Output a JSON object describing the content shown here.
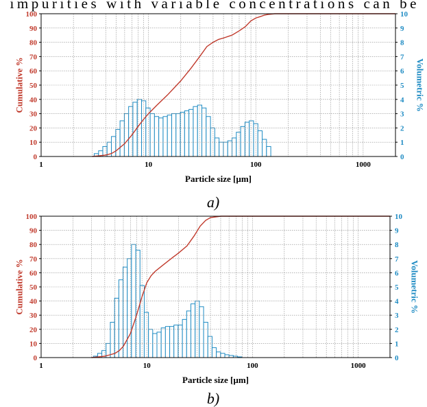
{
  "page": {
    "top_text": "impurities with variable concentrations can be"
  },
  "colors": {
    "cumulative": "#c0392b",
    "volumetric": "#1e8bc3",
    "grid": "#888888",
    "frame": "#000000"
  },
  "chart_data": [
    {
      "type": "bar",
      "panel_label": "a)",
      "xscale": "log",
      "xlim": [
        1,
        2000
      ],
      "xticks": [
        "1",
        "10",
        "100",
        "1000"
      ],
      "xlabel": "Particle size [µm]",
      "ylabel": "Cumulative %",
      "ylim": [
        0,
        100
      ],
      "yticks": [
        "0",
        "10",
        "20",
        "30",
        "40",
        "50",
        "60",
        "70",
        "80",
        "90",
        "100"
      ],
      "y2label": "Volumetric %",
      "y2lim": [
        0,
        10
      ],
      "y2ticks": [
        "0",
        "1",
        "2",
        "3",
        "4",
        "5",
        "6",
        "7",
        "8",
        "9",
        "10"
      ],
      "grid": true,
      "series": [
        {
          "kind": "histogram",
          "axis": "right",
          "x": [
            3.27,
            3.59,
            3.93,
            4.31,
            4.73,
            5.19,
            5.69,
            6.24,
            6.84,
            7.5,
            8.23,
            9.03,
            9.9,
            10.86,
            11.91,
            13.06,
            14.33,
            15.71,
            17.24,
            18.9,
            20.73,
            22.74,
            24.94,
            27.36,
            30.01,
            32.91,
            36.1,
            39.6,
            43.43,
            47.64,
            52.25,
            57.31,
            62.86,
            68.95,
            75.63,
            82.95,
            90.99,
            99.8,
            109.46,
            120.06,
            131.69
          ],
          "values": [
            0.2,
            0.4,
            0.7,
            1.0,
            1.4,
            1.9,
            2.5,
            3.0,
            3.5,
            3.8,
            4.0,
            3.9,
            3.4,
            3.0,
            2.8,
            2.7,
            2.8,
            2.9,
            3.0,
            3.0,
            3.1,
            3.2,
            3.3,
            3.5,
            3.6,
            3.4,
            2.8,
            2.0,
            1.3,
            1.0,
            1.0,
            1.1,
            1.3,
            1.7,
            2.1,
            2.4,
            2.5,
            2.3,
            1.8,
            1.2,
            0.7
          ]
        },
        {
          "kind": "line",
          "axis": "left",
          "x": [
            3.0,
            3.5,
            4.0,
            4.5,
            5.0,
            6.0,
            7.0,
            8.0,
            9.0,
            10.0,
            12.0,
            15.0,
            20.0,
            25.0,
            30.0,
            35.0,
            40.0,
            45.0,
            50.0,
            60.0,
            70.0,
            80.0,
            90.0,
            100.0,
            110.0,
            120.0,
            130.0,
            150.0,
            2000.0
          ],
          "values": [
            0,
            0.5,
            1,
            2,
            4,
            9,
            15,
            21,
            26,
            30,
            36,
            43,
            53,
            62,
            70,
            77,
            80,
            82,
            83,
            85,
            88,
            91,
            95,
            97,
            98,
            99,
            99.5,
            100,
            100
          ]
        }
      ]
    },
    {
      "type": "bar",
      "panel_label": "b)",
      "xscale": "log",
      "xlim": [
        1,
        2000
      ],
      "xticks": [
        "1",
        "10",
        "100",
        "1000"
      ],
      "xlabel": "Particle size [µm]",
      "ylabel": "Cumulative %",
      "ylim": [
        0,
        100
      ],
      "yticks": [
        "0",
        "10",
        "20",
        "30",
        "40",
        "50",
        "60",
        "70",
        "80",
        "90",
        "100"
      ],
      "y2label": "Volumetric %",
      "y2lim": [
        0,
        10
      ],
      "y2ticks": [
        "0",
        "1",
        "2",
        "3",
        "4",
        "5",
        "6",
        "7",
        "8",
        "9",
        "10"
      ],
      "grid": true,
      "series": [
        {
          "kind": "histogram",
          "axis": "right",
          "x": [
            3.27,
            3.59,
            3.93,
            4.31,
            4.73,
            5.19,
            5.69,
            6.24,
            6.84,
            7.5,
            8.23,
            9.03,
            9.9,
            10.86,
            11.91,
            13.06,
            14.33,
            15.71,
            17.24,
            18.9,
            20.73,
            22.74,
            24.94,
            27.36,
            30.01,
            32.91,
            36.1,
            39.6,
            43.43,
            47.64,
            52.25,
            57.31,
            62.86,
            68.95,
            75.63
          ],
          "values": [
            0.1,
            0.3,
            0.5,
            1.0,
            2.5,
            4.2,
            5.5,
            6.4,
            7.0,
            8.0,
            7.6,
            5.1,
            3.2,
            2.0,
            1.7,
            1.8,
            2.1,
            2.2,
            2.2,
            2.3,
            2.3,
            2.7,
            3.3,
            3.8,
            4.0,
            3.6,
            2.5,
            1.5,
            0.7,
            0.4,
            0.3,
            0.2,
            0.15,
            0.1,
            0.05
          ]
        },
        {
          "kind": "line",
          "axis": "left",
          "x": [
            3.0,
            3.5,
            4.0,
            4.5,
            5.0,
            5.5,
            6.0,
            7.0,
            8.0,
            9.0,
            10.0,
            11.0,
            12.0,
            14.0,
            17.0,
            20.0,
            24.0,
            28.0,
            32.0,
            36.0,
            40.0,
            50.0,
            60.0,
            70.0,
            2000.0
          ],
          "values": [
            0,
            0.5,
            1,
            2,
            3,
            5,
            8,
            17,
            30,
            43,
            53,
            58,
            61,
            65,
            70,
            74,
            79,
            86,
            93,
            97,
            99,
            100,
            100,
            100,
            100
          ]
        }
      ]
    }
  ]
}
